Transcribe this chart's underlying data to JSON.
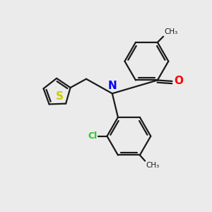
{
  "background_color": "#ebebeb",
  "bond_color": "#1a1a1a",
  "bond_width": 1.6,
  "figsize": [
    3.0,
    3.0
  ],
  "dpi": 100,
  "xlim": [
    0,
    10
  ],
  "ylim": [
    0,
    10
  ],
  "N_color": "#0000ff",
  "O_color": "#ff0000",
  "S_color": "#cccc00",
  "Cl_color": "#22cc22",
  "text_color": "#1a1a1a"
}
